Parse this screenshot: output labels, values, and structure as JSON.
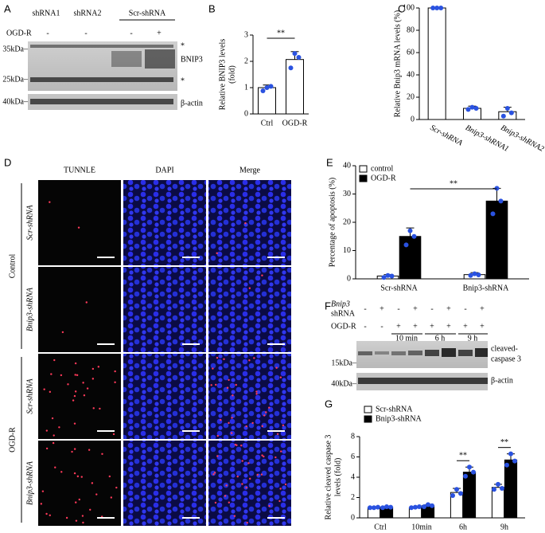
{
  "panel_labels": [
    "A",
    "B",
    "C",
    "D",
    "E",
    "F",
    "G"
  ],
  "blot_a": {
    "columns": [
      "shRNA1",
      "shRNA2",
      "Scr-shRNA"
    ],
    "treatment": "OGD-R",
    "signs": [
      "-",
      "-",
      "-",
      "+"
    ],
    "markers": [
      "35kDa–",
      "25kDa–",
      "40kDa–"
    ],
    "bands": [
      "*",
      "BNIP3",
      "*",
      "β-actin"
    ]
  },
  "blot_f": {
    "rows": [
      {
        "label": [
          "Bnip3",
          "shRNA"
        ],
        "signs": [
          "-",
          "+",
          "-",
          "+",
          "-",
          "+",
          "-",
          "+"
        ]
      },
      {
        "label": [
          "OGD-R"
        ],
        "signs": [
          "-",
          "-",
          "+",
          "+",
          "+",
          "+",
          "+",
          "+"
        ]
      }
    ],
    "times": [
      "10 min",
      "6 h",
      "9 h"
    ],
    "markers": [
      "15kDa–",
      "40kDa–"
    ],
    "bands": [
      "cleaved-",
      "caspase 3",
      "β-actin"
    ]
  },
  "micrographs": {
    "columns": [
      "TUNNLE",
      "DAPI",
      "Merge"
    ],
    "groups": [
      {
        "label": "Control",
        "rows": [
          "Scr-shRNA",
          "Bnip3-shRNA"
        ]
      },
      {
        "label": "OGD-R",
        "rows": [
          "Scr-shRNA",
          "Bnip3-shRNA"
        ]
      }
    ]
  },
  "chart_data": [
    {
      "type": "bar",
      "ylabel": [
        "Relative BNIP3 levels",
        "(fold)"
      ],
      "categories": [
        "Ctrl",
        "OGD-R"
      ],
      "series": [
        {
          "color": "#ffffff",
          "values": [
            1,
            2.07
          ],
          "errors": [
            0.1,
            0.3
          ],
          "points": [
            [
              0.88,
              1.0,
              1.05
            ],
            [
              1.75,
              2.3,
              2.15
            ]
          ]
        }
      ],
      "ylim": [
        0,
        3
      ],
      "yticks": [
        0,
        1,
        2,
        3
      ],
      "significance": [
        "**"
      ],
      "point_color": "#2a52e0"
    },
    {
      "type": "bar",
      "ylabel": [
        "Relative Bnip3 mRNA levels (%)"
      ],
      "categories": [
        "Scr-shRNA",
        "Bnip3-shRNA1",
        "Bnip3-shRNA2"
      ],
      "series": [
        {
          "color": "#ffffff",
          "values": [
            100,
            10,
            7
          ],
          "errors": [
            0,
            2,
            4
          ],
          "points": [
            [
              100,
              100,
              100
            ],
            [
              9,
              11,
              10
            ],
            [
              3,
              10,
              6
            ]
          ]
        }
      ],
      "ylim": [
        0,
        100
      ],
      "yticks": [
        0,
        20,
        40,
        60,
        80,
        100
      ],
      "point_color": "#2a52e0"
    },
    {
      "type": "bar",
      "ylabel": [
        "Percentage of apoptosis (%)"
      ],
      "categories": [
        "Scr-shRNA",
        "Bnip3-shRNA"
      ],
      "series": [
        {
          "name": "control",
          "color": "#ffffff",
          "values": [
            1,
            1.5
          ],
          "errors": [
            0.5,
            0.7
          ],
          "points": [
            [
              0.5,
              1.2,
              1.0
            ],
            [
              1.2,
              1.8,
              1.4
            ]
          ]
        },
        {
          "name": "OGD-R",
          "color": "#000000",
          "values": [
            15,
            27.5
          ],
          "errors": [
            3,
            4.5
          ],
          "points": [
            [
              12,
              17,
              15
            ],
            [
              23,
              32,
              27.5
            ]
          ]
        }
      ],
      "ylim": [
        0,
        40
      ],
      "yticks": [
        0,
        10,
        20,
        30,
        40
      ],
      "significance": [
        "**"
      ],
      "legend": "upper left",
      "point_color": "#2a52e0"
    },
    {
      "type": "bar",
      "ylabel": [
        "Relative cleaved caspase 3",
        "levels (fold)"
      ],
      "categories": [
        "Ctrl",
        "10min",
        "6h",
        "9h"
      ],
      "series": [
        {
          "name": "Scr-shRNA",
          "color": "#ffffff",
          "values": [
            1,
            1,
            2.5,
            3
          ],
          "errors": [
            0.07,
            0.1,
            0.4,
            0.3
          ],
          "points": [
            [
              1,
              1,
              1.05
            ],
            [
              1,
              1.05,
              1.1
            ],
            [
              2.2,
              2.8,
              2.4
            ],
            [
              2.8,
              3.3,
              2.9
            ]
          ]
        },
        {
          "name": "Bnip3-shRNA",
          "color": "#000000",
          "values": [
            1.05,
            1.2,
            4.5,
            5.7
          ],
          "errors": [
            0.05,
            0.08,
            0.5,
            0.6
          ],
          "points": [
            [
              1,
              1.1,
              1.05
            ],
            [
              1.1,
              1.3,
              1.2
            ],
            [
              4.1,
              5,
              4.5
            ],
            [
              5.2,
              6.3,
              5.6
            ]
          ]
        }
      ],
      "ylim": [
        0,
        8
      ],
      "yticks": [
        0,
        2,
        4,
        6,
        8
      ],
      "significance": [
        null,
        null,
        "**",
        "**"
      ],
      "legend": "upper left",
      "point_color": "#2a52e0"
    }
  ]
}
